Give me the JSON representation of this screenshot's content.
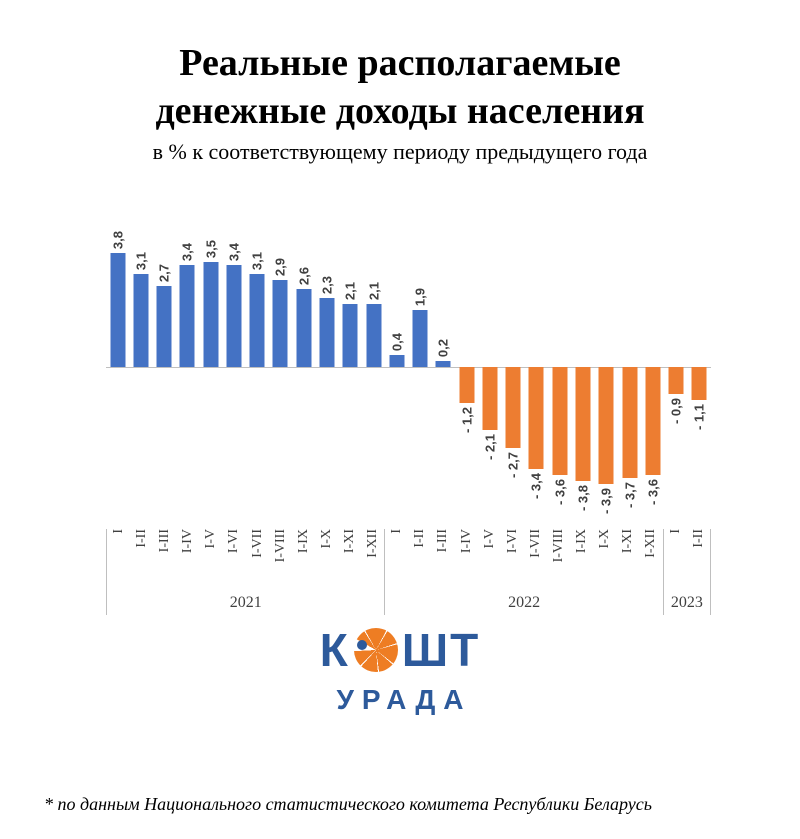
{
  "title": {
    "line1": "Реальные располагаемые",
    "line2": "денежные доходы населения",
    "subtitle": "в %  к соответствующему периоду предыдущего года"
  },
  "chart_data": {
    "type": "bar",
    "title": "Реальные располагаемые денежные доходы населения",
    "subtitle": "в % к соответствующему периоду предыдущего года",
    "ylim": [
      -4.5,
      4.5
    ],
    "positive_color": "#4472C4",
    "negative_color": "#ED7D31",
    "legend": "none",
    "grid": "off",
    "groups": [
      {
        "year": "2021",
        "categories": [
          "I",
          "I-II",
          "I-III",
          "I-IV",
          "I-V",
          "I-VI",
          "I-VII",
          "I-VIII",
          "I-IX",
          "I-X",
          "I-XI",
          "I-XII"
        ],
        "values": [
          3.8,
          3.1,
          2.7,
          3.4,
          3.5,
          3.4,
          3.1,
          2.9,
          2.6,
          2.3,
          2.1,
          2.1
        ],
        "labels": [
          "3,8",
          "3,1",
          "2,7",
          "3,4",
          "3,5",
          "3,4",
          "3,1",
          "2,9",
          "2,6",
          "2,3",
          "2,1",
          "2,1"
        ]
      },
      {
        "year": "2022",
        "categories": [
          "I",
          "I-II",
          "I-III",
          "I-IV",
          "I-V",
          "I-VI",
          "I-VII",
          "I-VIII",
          "I-IX",
          "I-X",
          "I-XI",
          "I-XII"
        ],
        "values": [
          0.4,
          1.9,
          0.2,
          -1.2,
          -2.1,
          -2.7,
          -3.4,
          -3.6,
          -3.8,
          -3.9,
          -3.7,
          -3.6
        ],
        "labels": [
          "0,4",
          "1,9",
          "0,2",
          "- 1,2",
          "- 2,1",
          "- 2,7",
          "- 3,4",
          "- 3,6",
          "- 3,8",
          "- 3,9",
          "- 3,7",
          "- 3,6"
        ]
      },
      {
        "year": "2023",
        "categories": [
          "I",
          "I-II"
        ],
        "values": [
          -0.9,
          -1.1
        ],
        "labels": [
          "- 0,9",
          "- 1,1"
        ]
      }
    ]
  },
  "logo": {
    "word1_start": "К",
    "word1_end": "ШТ",
    "word2": "УРАДА"
  },
  "footnote": "* по данным Национального статистического комитета Республики Беларусь",
  "colors": {
    "positive": "#4472C4",
    "negative": "#ED7D31",
    "label_ink": "#404040",
    "axis_line": "#bfbfbf",
    "logo_blue": "#2d5a9b",
    "logo_orange": "#ee7d23"
  }
}
